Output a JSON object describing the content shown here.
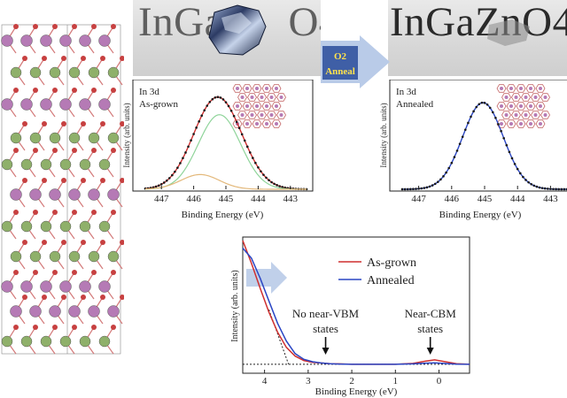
{
  "photos": {
    "left_label": "InGa      O4",
    "right_label": "InGaZnO4"
  },
  "process_arrow": {
    "line1": "O2",
    "line2": "Anneal"
  },
  "colors": {
    "arrow_fill": "#b9cbe8",
    "arrow_label_bg": "#3f5fa6",
    "arrow_label_text": "#ffe34d",
    "as_grown": "#cf2f2f",
    "annealed": "#2a46c4",
    "component_green": "#8fd49a",
    "component_tan": "#e3b87a",
    "atom_in": "#b57ab5",
    "atom_ga": "#8fb06a",
    "atom_o": "#c74040"
  },
  "chart_data": [
    {
      "type": "line",
      "title_line1": "In 3d",
      "title_line2": "As-grown",
      "xlabel": "Binding Energy (eV)",
      "ylabel": "Intensity (arb. units)",
      "xlim": [
        447.5,
        442.5
      ],
      "xticks": [
        447,
        446,
        445,
        444,
        443
      ],
      "series": [
        {
          "role": "data",
          "peak_center": 445.2,
          "peak_amplitude": 1.0,
          "fwhm": 1.7
        },
        {
          "role": "fit-main",
          "peak_center": 445.2,
          "peak_amplitude": 0.86,
          "fwhm": 1.55
        },
        {
          "role": "fit-shoulder",
          "peak_center": 445.8,
          "peak_amplitude": 0.17,
          "fwhm": 1.4
        }
      ]
    },
    {
      "type": "line",
      "title_line1": "In 3d",
      "title_line2": "Annealed",
      "xlabel": "Binding Energy (eV)",
      "ylabel": "Intensity (arb. units)",
      "xlim": [
        447.5,
        442.5
      ],
      "xticks": [
        447,
        446,
        445,
        444,
        443
      ],
      "series": [
        {
          "role": "data",
          "peak_center": 445.05,
          "peak_amplitude": 1.0,
          "fwhm": 1.45
        }
      ]
    },
    {
      "type": "line",
      "xlabel": "Binding Energy (eV)",
      "ylabel": "Intensity (arb. units)",
      "xlim": [
        4.5,
        -0.7
      ],
      "xticks": [
        4,
        3,
        2,
        1,
        0
      ],
      "series": [
        {
          "name": "As-grown",
          "x": [
            4.5,
            4.3,
            4.1,
            3.9,
            3.7,
            3.5,
            3.3,
            3.1,
            2.9,
            2.7,
            2.5,
            2.3,
            2.0,
            1.5,
            1.0,
            0.6,
            0.3,
            0.1,
            -0.1,
            -0.4,
            -0.7
          ],
          "y": [
            1.0,
            0.82,
            0.62,
            0.43,
            0.27,
            0.15,
            0.08,
            0.045,
            0.03,
            0.025,
            0.02,
            0.018,
            0.015,
            0.015,
            0.015,
            0.022,
            0.04,
            0.05,
            0.038,
            0.02,
            0.015
          ]
        },
        {
          "name": "Annealed",
          "x": [
            4.5,
            4.3,
            4.1,
            3.9,
            3.7,
            3.5,
            3.3,
            3.1,
            2.9,
            2.7,
            2.5,
            2.3,
            2.0,
            1.5,
            1.0,
            0.6,
            0.3,
            0.1,
            -0.1,
            -0.4,
            -0.7
          ],
          "y": [
            0.94,
            0.86,
            0.7,
            0.52,
            0.34,
            0.2,
            0.1,
            0.055,
            0.035,
            0.025,
            0.02,
            0.017,
            0.015,
            0.015,
            0.015,
            0.018,
            0.024,
            0.027,
            0.022,
            0.016,
            0.015
          ]
        }
      ],
      "annotations": [
        {
          "label": "No near-VBM states",
          "line1": "No near-VBM",
          "line2": "states",
          "x": 2.6
        },
        {
          "label": "Near-CBM states",
          "line1": "Near-CBM",
          "line2": "states",
          "x": 0.2
        }
      ],
      "legend": [
        "As-grown",
        "Annealed"
      ]
    }
  ]
}
